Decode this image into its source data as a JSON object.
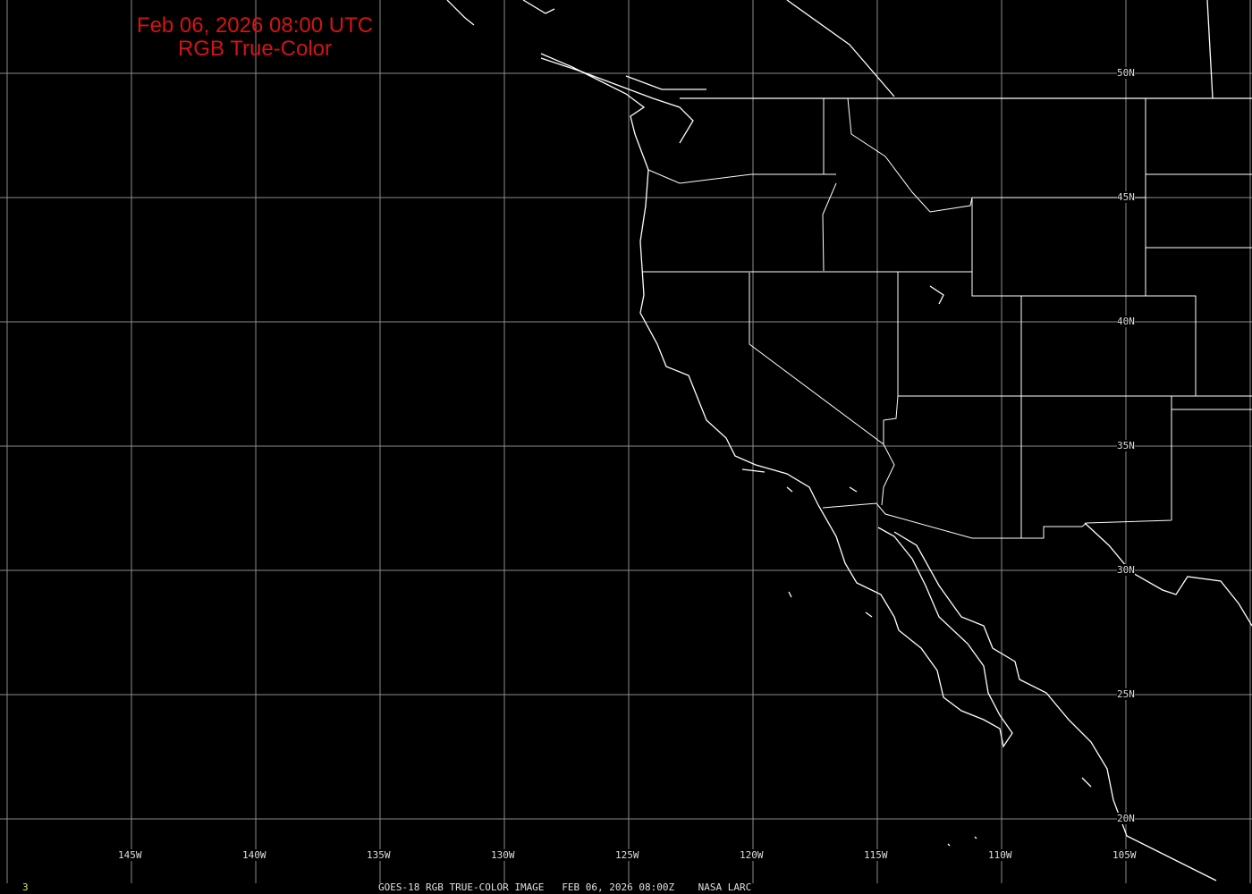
{
  "title": {
    "line1": "Feb 06, 2026 08:00 UTC",
    "line2": "RGB True-Color"
  },
  "longitude_labels": [
    "145W",
    "140W",
    "135W",
    "130W",
    "125W",
    "120W",
    "115W",
    "110W",
    "105W"
  ],
  "latitude_labels": [
    "50N",
    "45N",
    "40N",
    "35N",
    "30N",
    "25N",
    "20N"
  ],
  "footer": {
    "frame": "3",
    "caption": "GOES-18 RGB TRUE-COLOR IMAGE   FEB 06, 2026 08:00Z    NASA LARC"
  },
  "colors": {
    "background": "#000000",
    "title": "#d41414",
    "grid": "#8c8c8c",
    "borders": "#ffffff",
    "frame_number": "#e6e64a"
  }
}
